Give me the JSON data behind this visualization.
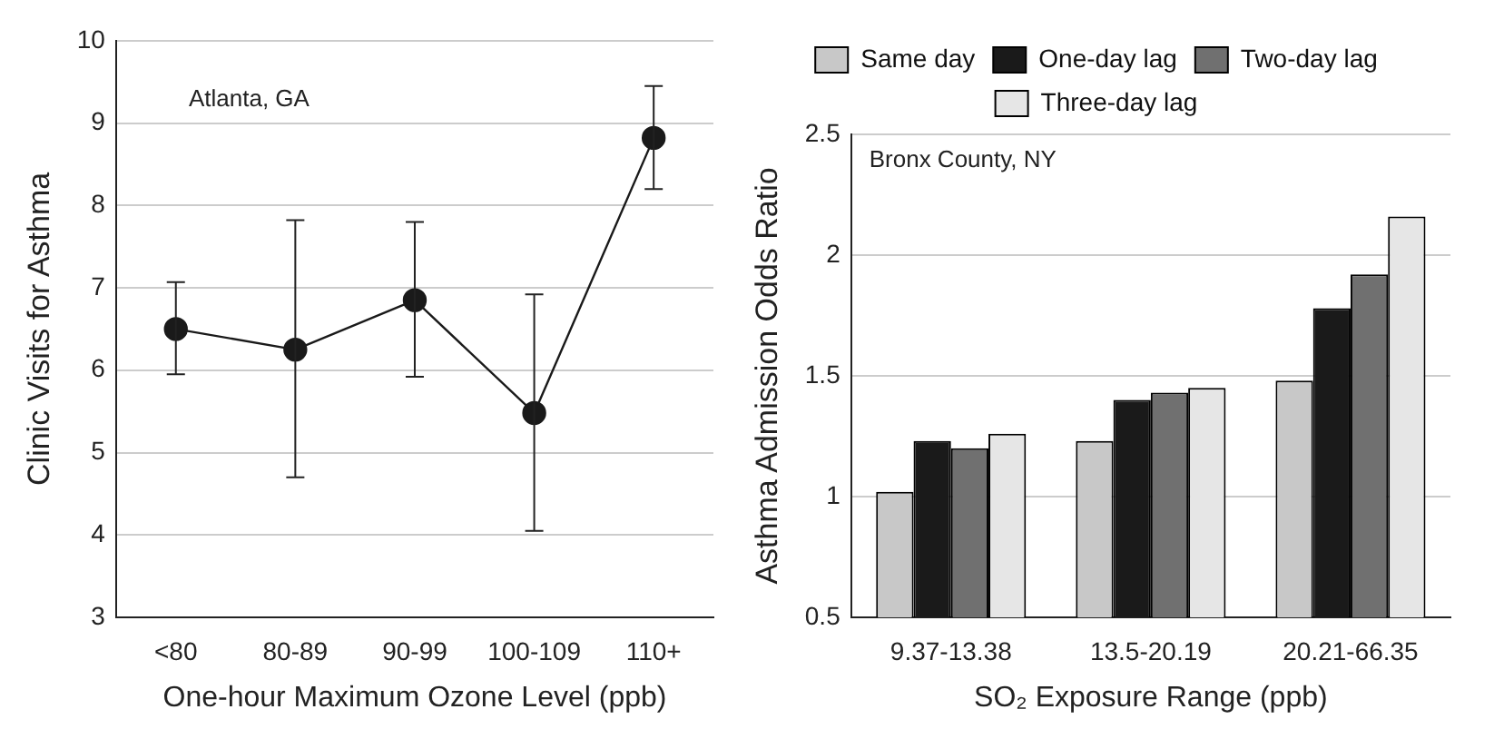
{
  "chart_data": [
    {
      "type": "line",
      "categories": [
        "<80",
        "80-89",
        "90-99",
        "100-109",
        "110+"
      ],
      "values": [
        6.5,
        6.25,
        6.85,
        5.48,
        8.82
      ],
      "errors": [
        [
          5.95,
          7.07
        ],
        [
          4.7,
          7.82
        ],
        [
          5.92,
          7.8
        ],
        [
          4.05,
          6.92
        ],
        [
          8.2,
          9.45
        ]
      ],
      "color": "#1a1a1a",
      "marker": "circle",
      "line_style": "solid",
      "xlabel": "One-hour Maximum Ozone Level (ppb)",
      "ylabel": "Clinic Visits for Asthma",
      "ylim": [
        3,
        10
      ],
      "yticks": [
        3,
        4,
        5,
        6,
        7,
        8,
        9,
        10
      ],
      "grid": "y",
      "annotations": [
        "Atlanta, GA"
      ]
    },
    {
      "type": "bar",
      "categories": [
        "9.37-13.38",
        "13.5-20.19",
        "20.21-66.35"
      ],
      "series": [
        {
          "name": "Same day",
          "color": "#c8c8c8",
          "values": [
            1.02,
            1.23,
            1.48
          ]
        },
        {
          "name": "One-day lag",
          "color": "#1a1a1a",
          "values": [
            1.23,
            1.4,
            1.78
          ]
        },
        {
          "name": "Two-day lag",
          "color": "#707070",
          "values": [
            1.2,
            1.43,
            1.92
          ]
        },
        {
          "name": "Three-day lag",
          "color": "#e6e6e6",
          "values": [
            1.26,
            1.45,
            2.16
          ]
        }
      ],
      "xlabel": "SO₂ Exposure Range (ppb)",
      "ylabel": "Asthma Admission Odds Ratio",
      "ylim": [
        0.5,
        2.5
      ],
      "yticks": [
        0.5,
        1,
        1.5,
        2,
        2.5
      ],
      "grid": "y",
      "legend": "top",
      "annotations": [
        "Bronx County, NY"
      ]
    }
  ]
}
